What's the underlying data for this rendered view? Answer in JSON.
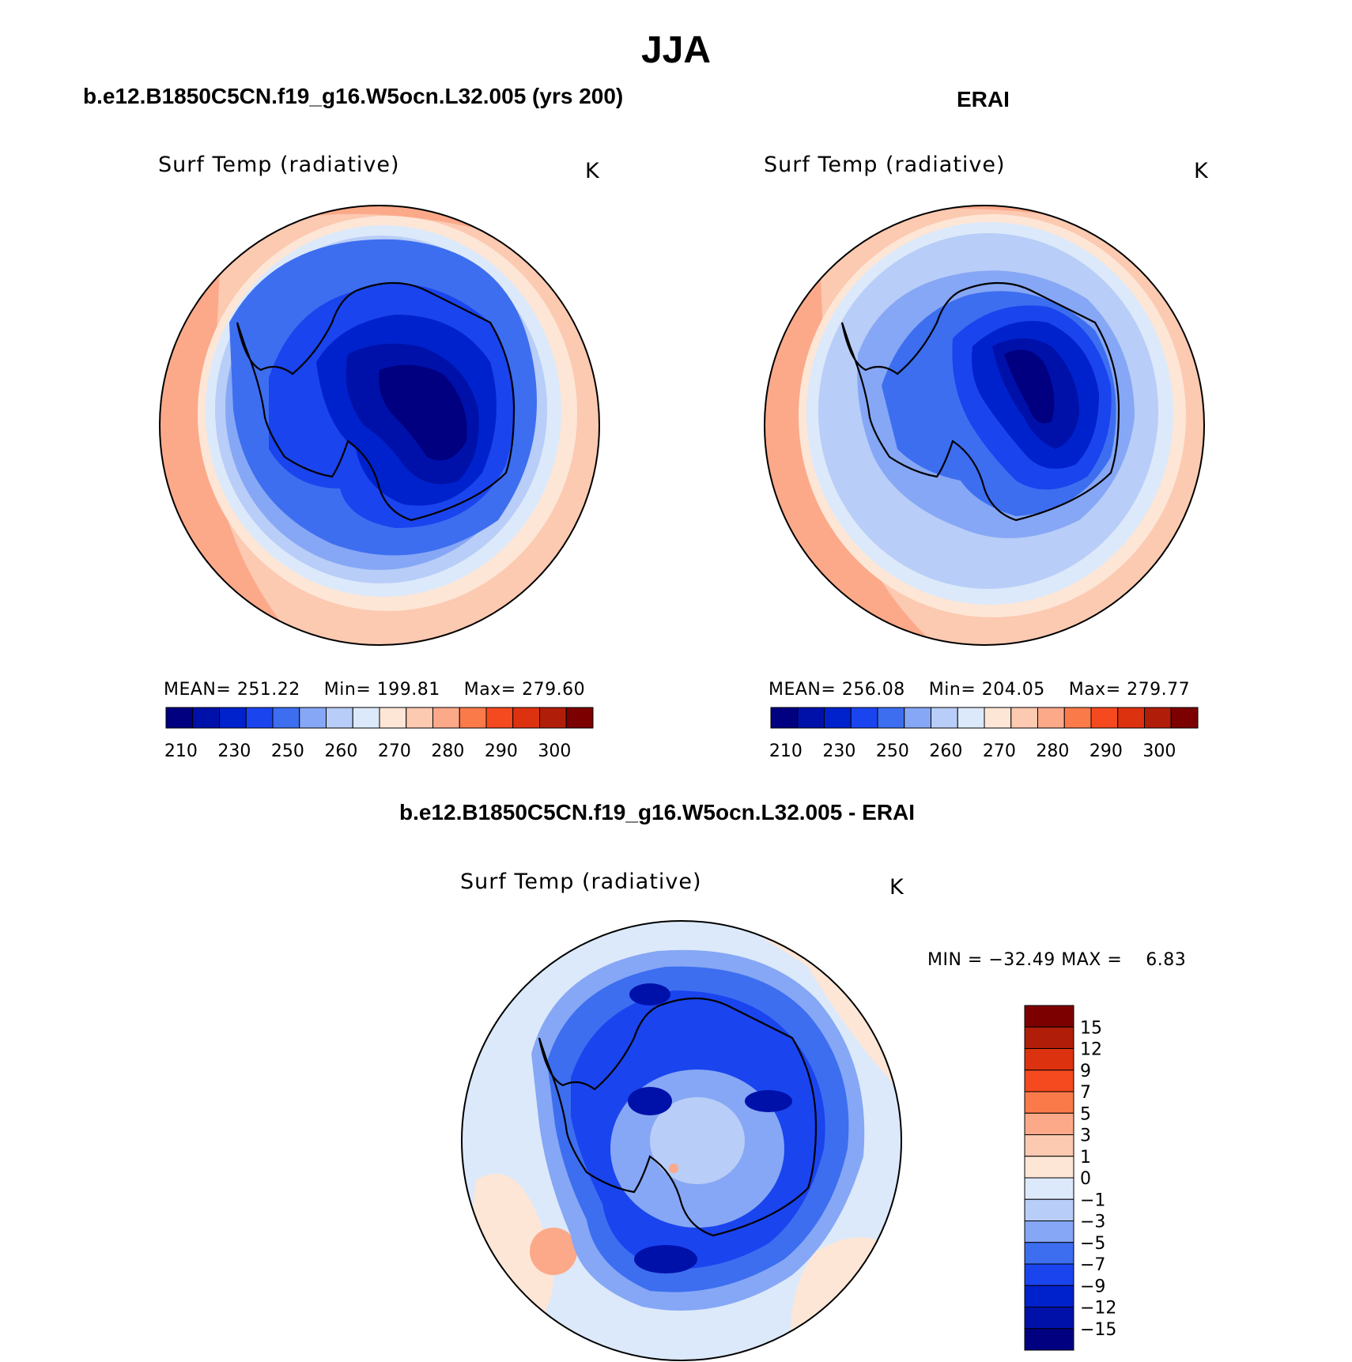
{
  "title": "JJA",
  "panels": {
    "model": {
      "case_title": "b.e12.B1850C5CN.f19_g16.W5ocn.L32.005 (yrs 200)",
      "variable": "Surf Temp (radiative)",
      "units": "K",
      "mean_text": "MEAN= 251.22",
      "min_text": "Min= 199.81",
      "max_text": "Max= 279.60"
    },
    "obs": {
      "case_title": "ERAI",
      "variable": "Surf Temp (radiative)",
      "units": "K",
      "mean_text": "MEAN= 256.08",
      "min_text": "Min= 204.05",
      "max_text": "Max= 279.77"
    },
    "diff": {
      "case_title": "b.e12.B1850C5CN.f19_g16.W5ocn.L32.005 - ERAI",
      "variable": "Surf Temp (radiative)",
      "units": "K",
      "minmax_text": "MIN = −32.49 MAX =    6.83"
    }
  },
  "colors": {
    "abs_palette": [
      "#000080",
      "#0011aa",
      "#0022cc",
      "#1a44ee",
      "#3d6ef0",
      "#86a7f5",
      "#b8cdf7",
      "#dce9fa",
      "#fde6d6",
      "#fcc9b1",
      "#fca98a",
      "#fb7a4a",
      "#f54a1f",
      "#dd3210",
      "#b01e0a",
      "#7d0000"
    ],
    "diff_palette": [
      "#000080",
      "#0011aa",
      "#0022cc",
      "#1a44ee",
      "#3d6ef0",
      "#86a7f5",
      "#b8cdf7",
      "#dce9fa",
      "#fde6d6",
      "#fcc9b1",
      "#fca98a",
      "#fb7a4a",
      "#f54a1f",
      "#dd3210",
      "#b01e0a",
      "#7d0000"
    ]
  },
  "chart_data": [
    {
      "type": "heatmap",
      "projection": "south-polar-stereographic",
      "title": "Surf Temp (radiative)",
      "units": "K",
      "mean": 251.22,
      "min": 199.81,
      "max": 279.6,
      "colorbar_ticks": [
        "210",
        "230",
        "250",
        "260",
        "270",
        "280",
        "290",
        "300"
      ],
      "contour_levels": [
        210,
        220,
        230,
        240,
        250,
        255,
        260,
        265,
        270,
        275,
        280,
        285,
        290,
        295,
        300
      ]
    },
    {
      "type": "heatmap",
      "projection": "south-polar-stereographic",
      "title": "Surf Temp (radiative)",
      "units": "K",
      "mean": 256.08,
      "min": 204.05,
      "max": 279.77,
      "colorbar_ticks": [
        "210",
        "230",
        "250",
        "260",
        "270",
        "280",
        "290",
        "300"
      ],
      "contour_levels": [
        210,
        220,
        230,
        240,
        250,
        255,
        260,
        265,
        270,
        275,
        280,
        285,
        290,
        295,
        300
      ]
    },
    {
      "type": "heatmap",
      "projection": "south-polar-stereographic",
      "title": "Surf Temp (radiative)",
      "units": "K",
      "min": -32.49,
      "max": 6.83,
      "colorbar_ticks": [
        "15",
        "12",
        "9",
        "7",
        "5",
        "3",
        "1",
        "0",
        "−1",
        "−3",
        "−5",
        "−7",
        "−9",
        "−12",
        "−15"
      ]
    }
  ]
}
